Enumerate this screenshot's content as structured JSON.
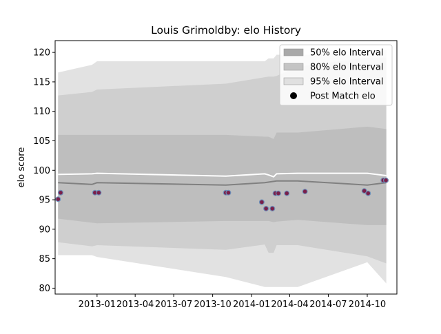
{
  "chart_data": {
    "type": "line",
    "title": "Louis Grimoldby: elo History",
    "xlabel": "",
    "ylabel": "elo score",
    "xlim": [
      "2012-09-24",
      "2014-12-10"
    ],
    "ylim": [
      79,
      122
    ],
    "x_ticks": [
      "2013-01",
      "2013-04",
      "2013-07",
      "2013-10",
      "2014-01",
      "2014-04",
      "2014-07",
      "2014-10"
    ],
    "y_ticks": [
      80,
      85,
      90,
      95,
      100,
      105,
      110,
      115,
      120
    ],
    "grid": false,
    "legend_position": "top-right",
    "legend": [
      {
        "label": "50% elo Interval",
        "kind": "band",
        "color": "#a9a9a9"
      },
      {
        "label": "80% elo Interval",
        "kind": "band",
        "color": "#c4c4c4"
      },
      {
        "label": "95% elo Interval",
        "kind": "band",
        "color": "#e0e0e0"
      },
      {
        "label": "Post Match elo",
        "kind": "marker",
        "color": "#000000"
      }
    ],
    "colors": {
      "band95": "#e2e2e2",
      "band80": "#cfcfcf",
      "band50": "#bebebe",
      "median": "#808080",
      "mean": "#ffffff",
      "marker_fill": "#7a1f4a",
      "marker_edge": "#6f8fb8"
    },
    "bands": {
      "dates": [
        "2012-10-01",
        "2012-12-20",
        "2013-01-01",
        "2013-11-01",
        "2014-02-01",
        "2014-02-10",
        "2014-02-22",
        "2014-03-01",
        "2014-04-20",
        "2014-10-01",
        "2014-11-15"
      ],
      "lower95": [
        85.6,
        85.6,
        85.3,
        81.9,
        80.2,
        80.2,
        80.2,
        80.2,
        80.2,
        84.4,
        80.8
      ],
      "upper95": [
        116.6,
        117.9,
        118.5,
        118.5,
        118.5,
        119.0,
        119.0,
        119.6,
        119.6,
        119.6,
        120.4
      ],
      "lower80": [
        87.8,
        87.1,
        87.3,
        86.5,
        87.4,
        86.0,
        86.0,
        87.3,
        87.3,
        85.4,
        84.2
      ],
      "upper80": [
        112.7,
        113.3,
        113.7,
        114.7,
        115.8,
        115.9,
        115.9,
        116.0,
        117.6,
        119.1,
        119.1
      ],
      "lower50": [
        91.8,
        91.1,
        91.0,
        91.4,
        91.4,
        91.4,
        91.2,
        91.3,
        91.6,
        90.7,
        90.7
      ],
      "upper50": [
        106.0,
        106.0,
        106.0,
        106.0,
        105.7,
        105.7,
        105.3,
        106.4,
        106.4,
        107.4,
        107.0
      ]
    },
    "mean_line": {
      "dates": [
        "2012-10-01",
        "2012-12-20",
        "2013-01-01",
        "2013-11-01",
        "2014-02-01",
        "2014-02-10",
        "2014-02-22",
        "2014-03-01",
        "2014-04-20",
        "2014-10-01",
        "2014-11-15"
      ],
      "values": [
        99.3,
        99.4,
        99.5,
        99.0,
        99.4,
        99.2,
        98.9,
        99.4,
        99.5,
        99.5,
        99.1
      ]
    },
    "median_line": {
      "dates": [
        "2012-10-01",
        "2012-12-20",
        "2013-01-01",
        "2013-11-01",
        "2014-02-01",
        "2014-03-01",
        "2014-04-20",
        "2014-10-01",
        "2014-11-15"
      ],
      "values": [
        97.9,
        97.6,
        97.9,
        97.5,
        97.9,
        98.2,
        98.2,
        97.5,
        97.9
      ]
    },
    "post_match_elo": [
      {
        "x": "2012-10-01",
        "y": 95.1
      },
      {
        "x": "2012-10-07",
        "y": 96.2
      },
      {
        "x": "2012-12-27",
        "y": 96.2
      },
      {
        "x": "2013-01-05",
        "y": 96.2
      },
      {
        "x": "2013-11-01",
        "y": 96.2
      },
      {
        "x": "2013-11-07",
        "y": 96.2
      },
      {
        "x": "2014-01-25",
        "y": 94.6
      },
      {
        "x": "2014-02-04",
        "y": 93.5
      },
      {
        "x": "2014-02-19",
        "y": 93.5
      },
      {
        "x": "2014-02-26",
        "y": 96.1
      },
      {
        "x": "2014-03-05",
        "y": 96.1
      },
      {
        "x": "2014-03-25",
        "y": 96.1
      },
      {
        "x": "2014-05-07",
        "y": 96.4
      },
      {
        "x": "2014-09-24",
        "y": 96.5
      },
      {
        "x": "2014-10-03",
        "y": 96.1
      },
      {
        "x": "2014-11-08",
        "y": 98.3
      },
      {
        "x": "2014-11-14",
        "y": 98.3
      }
    ]
  }
}
